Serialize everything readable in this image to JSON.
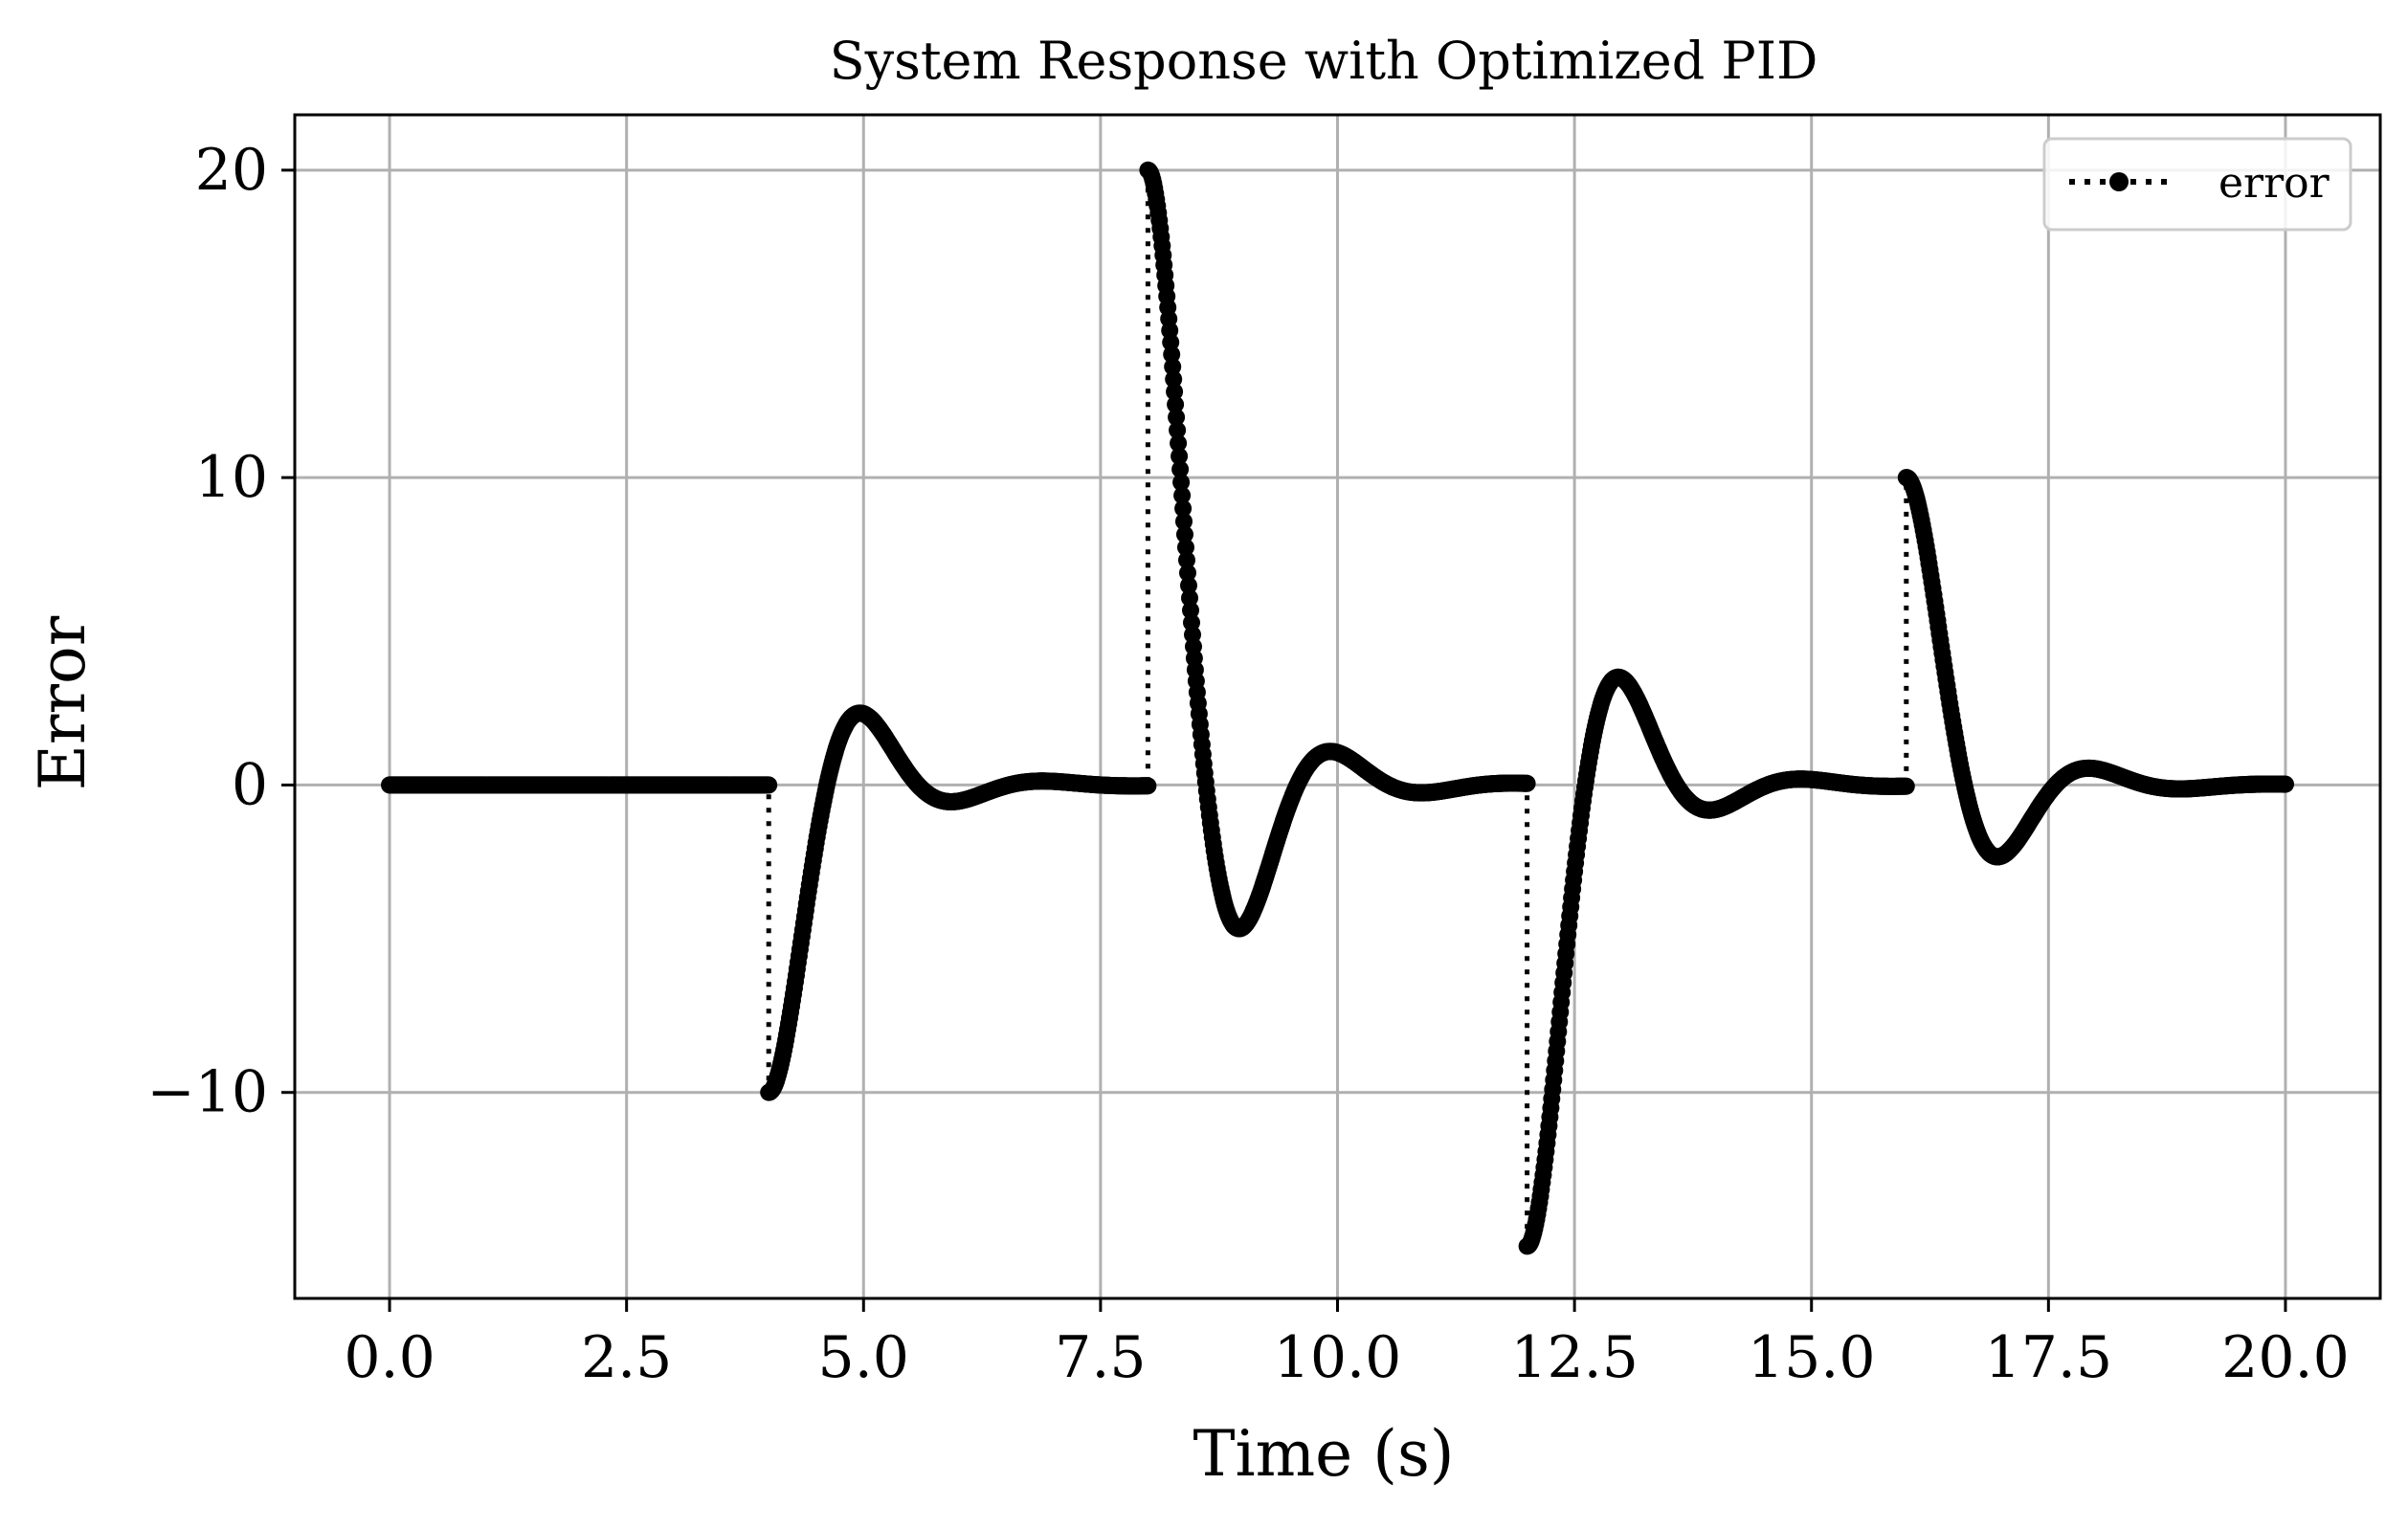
{
  "chart_data": {
    "type": "line",
    "title": "System Response with Optimized PID",
    "xlabel": "Time (s)",
    "ylabel": "Error",
    "xlim": [
      -1.0,
      21.0
    ],
    "ylim": [
      -16.7,
      21.8
    ],
    "xticks": [
      0.0,
      2.5,
      5.0,
      7.5,
      10.0,
      12.5,
      15.0,
      17.5,
      20.0
    ],
    "xtick_labels": [
      "0.0",
      "2.5",
      "5.0",
      "7.5",
      "10.0",
      "12.5",
      "15.0",
      "17.5",
      "20.0"
    ],
    "yticks": [
      -10,
      0,
      10,
      20
    ],
    "ytick_labels": [
      "−10",
      "0",
      "10",
      "20"
    ],
    "grid": true,
    "legend": {
      "position": "top-right",
      "entries": [
        "error"
      ]
    },
    "series": [
      {
        "name": "error",
        "color": "#000000",
        "linestyle": "dotted",
        "marker": "dot",
        "segments": [
          {
            "t_start": 0.0,
            "t_end": 4.0,
            "initial": 0,
            "shape": "flat"
          },
          {
            "t_start": 4.0,
            "t_end": 8.0,
            "initial": -10,
            "shape": "damped"
          },
          {
            "t_start": 8.0,
            "t_end": 12.0,
            "initial": 20,
            "shape": "damped"
          },
          {
            "t_start": 12.0,
            "t_end": 16.0,
            "initial": -15,
            "shape": "damped"
          },
          {
            "t_start": 16.0,
            "t_end": 20.0,
            "initial": 10,
            "shape": "damped"
          }
        ],
        "key_points": [
          {
            "x": 4.0,
            "y": -10
          },
          {
            "x": 5.1,
            "y": 1.4
          },
          {
            "x": 8.0,
            "y": 20
          },
          {
            "x": 9.2,
            "y": -2.9
          },
          {
            "x": 12.0,
            "y": -15
          },
          {
            "x": 13.1,
            "y": 2.1
          },
          {
            "x": 16.0,
            "y": 10
          },
          {
            "x": 17.2,
            "y": -1.4
          },
          {
            "x": 20.0,
            "y": 0
          }
        ]
      }
    ]
  }
}
